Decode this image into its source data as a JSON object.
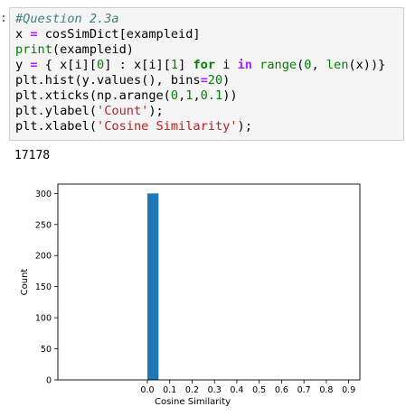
{
  "cell": {
    "prompt": ":",
    "code_lines": [
      [
        {
          "t": "comment",
          "v": "#Question 2.3a"
        }
      ],
      [
        {
          "t": "name",
          "v": "x "
        },
        {
          "t": "op",
          "v": "="
        },
        {
          "t": "name",
          "v": " cosSimDict[exampleid]"
        }
      ],
      [
        {
          "t": "builtin",
          "v": "print"
        },
        {
          "t": "name",
          "v": "(exampleid)"
        }
      ],
      [
        {
          "t": "name",
          "v": "y "
        },
        {
          "t": "op",
          "v": "="
        },
        {
          "t": "name",
          "v": " { x[i]["
        },
        {
          "t": "num",
          "v": "0"
        },
        {
          "t": "name",
          "v": "] : x[i]["
        },
        {
          "t": "num",
          "v": "1"
        },
        {
          "t": "name",
          "v": "] "
        },
        {
          "t": "kw",
          "v": "for"
        },
        {
          "t": "name",
          "v": " i "
        },
        {
          "t": "op",
          "v": "in"
        },
        {
          "t": "name",
          "v": " "
        },
        {
          "t": "builtin",
          "v": "range"
        },
        {
          "t": "name",
          "v": "("
        },
        {
          "t": "num",
          "v": "0"
        },
        {
          "t": "name",
          "v": ", "
        },
        {
          "t": "builtin",
          "v": "len"
        },
        {
          "t": "name",
          "v": "(x))}"
        }
      ],
      [
        {
          "t": "name",
          "v": "plt.hist(y.values(), bins"
        },
        {
          "t": "op",
          "v": "="
        },
        {
          "t": "num",
          "v": "20"
        },
        {
          "t": "name",
          "v": ")"
        }
      ],
      [
        {
          "t": "name",
          "v": "plt.xticks(np.arange("
        },
        {
          "t": "num",
          "v": "0"
        },
        {
          "t": "name",
          "v": ","
        },
        {
          "t": "num",
          "v": "1"
        },
        {
          "t": "name",
          "v": ","
        },
        {
          "t": "num",
          "v": "0.1"
        },
        {
          "t": "name",
          "v": "))"
        }
      ],
      [
        {
          "t": "name",
          "v": "plt.ylabel("
        },
        {
          "t": "str",
          "v": "'Count'"
        },
        {
          "t": "name",
          "v": ");"
        }
      ],
      [
        {
          "t": "name",
          "v": "plt.xlabel("
        },
        {
          "t": "str",
          "v": "'Cosine Similarity'"
        },
        {
          "t": "name",
          "v": ");"
        }
      ]
    ]
  },
  "output": {
    "text": "17178"
  },
  "chart_data": {
    "type": "bar",
    "bars": [
      {
        "x_start": 0.0,
        "x_end": 0.05,
        "count": 300
      }
    ],
    "bar_color": "#1f77b4",
    "xlim": [
      -0.4,
      0.95
    ],
    "ylim": [
      0,
      315
    ],
    "xticks": [
      "0.0",
      "0.1",
      "0.2",
      "0.3",
      "0.4",
      "0.5",
      "0.6",
      "0.7",
      "0.8",
      "0.9"
    ],
    "xtick_values": [
      0.0,
      0.1,
      0.2,
      0.3,
      0.4,
      0.5,
      0.6,
      0.7,
      0.8,
      0.9
    ],
    "yticks": [
      "0",
      "50",
      "100",
      "150",
      "200",
      "250",
      "300"
    ],
    "ytick_values": [
      0,
      50,
      100,
      150,
      200,
      250,
      300
    ],
    "xlabel": "Cosine Similarity",
    "ylabel": "Count",
    "grid": false
  }
}
